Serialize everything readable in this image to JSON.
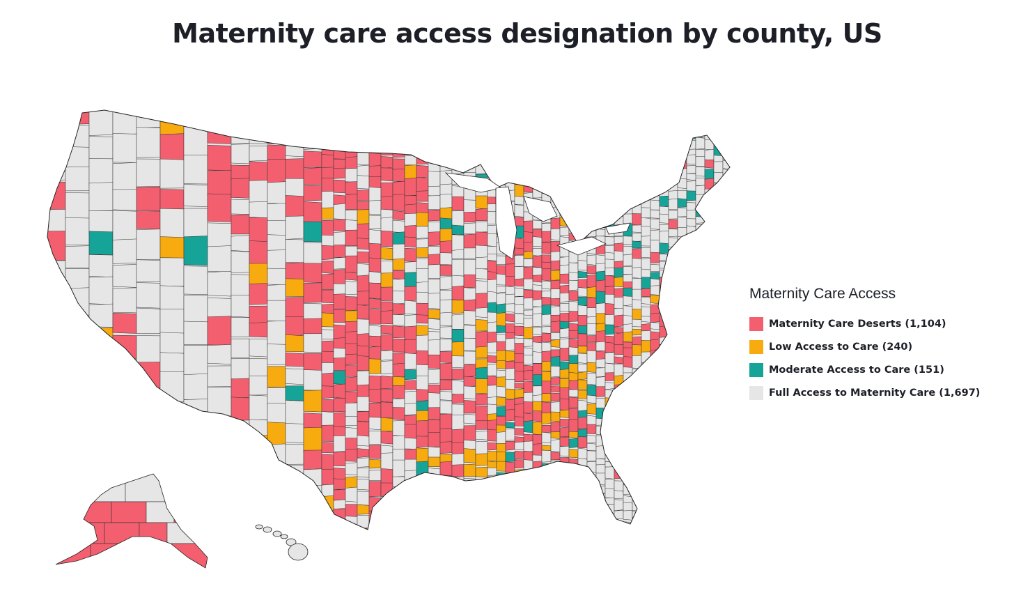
{
  "title": "Maternity care access designation by county, US",
  "legend": {
    "title": "Maternity Care Access",
    "items": [
      {
        "label": "Maternity Care Deserts (1,104)",
        "category": "desert",
        "color": "#f45f6f"
      },
      {
        "label": "Low Access to Care (240)",
        "category": "low",
        "color": "#f8ab0f"
      },
      {
        "label": "Moderate Access to Care (151)",
        "category": "moderate",
        "color": "#16a499"
      },
      {
        "label": "Full Access to Maternity Care (1,697)",
        "category": "full",
        "color": "#e6e6e6"
      }
    ]
  },
  "map": {
    "regions": [
      "Contiguous US",
      "Alaska",
      "Hawaii"
    ],
    "border_color": "#333333"
  }
}
